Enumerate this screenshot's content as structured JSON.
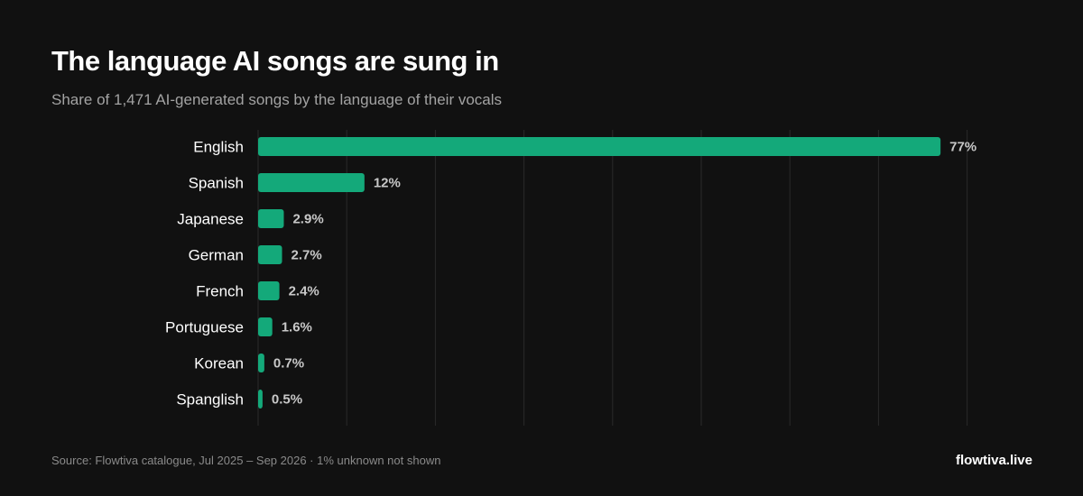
{
  "header": {
    "title": "The language AI songs are sung in",
    "subtitle": "Share of 1,471 AI-generated songs by the language of their vocals"
  },
  "footer": {
    "source": "Source: Flowtiva catalogue, Jul 2025 – Sep 2026 · 1% unknown not shown",
    "brand": "flowtiva.live"
  },
  "colors": {
    "background": "#111111",
    "bar": "#14a97a",
    "grid": "#2a2a2a"
  },
  "chart_data": {
    "type": "bar",
    "orientation": "horizontal",
    "title": "The language AI songs are sung in",
    "subtitle": "Share of 1,471 AI-generated songs by the language of their vocals",
    "categories": [
      "English",
      "Spanish",
      "Japanese",
      "German",
      "French",
      "Portuguese",
      "Korean",
      "Spanglish"
    ],
    "values": [
      77,
      12,
      2.9,
      2.7,
      2.4,
      1.6,
      0.7,
      0.5
    ],
    "value_labels": [
      "77%",
      "12%",
      "2.9%",
      "2.7%",
      "2.4%",
      "1.6%",
      "0.7%",
      "0.5%"
    ],
    "xlim": [
      0,
      80
    ],
    "grid_step": 10,
    "grid": true,
    "legend": "none"
  }
}
